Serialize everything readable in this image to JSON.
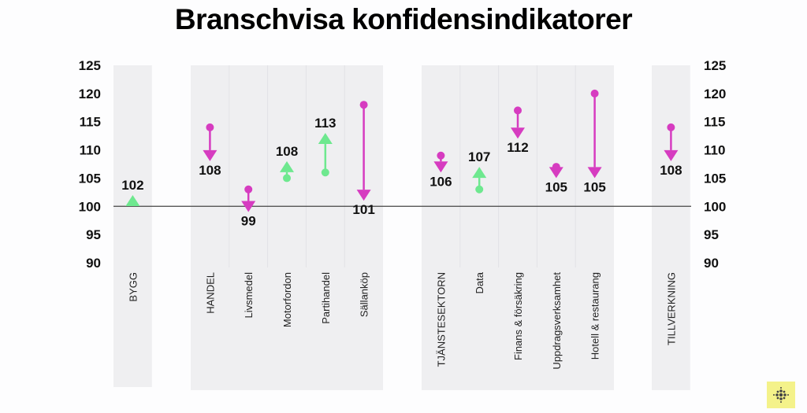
{
  "title": "Branschvisa konfidensindikatorer",
  "chart_data": {
    "type": "arrow-dot",
    "title": "Branschvisa konfidensindikatorer",
    "ylim": [
      90,
      125
    ],
    "yticks": [
      125,
      120,
      115,
      110,
      105,
      100,
      95,
      90
    ],
    "baseline": 100,
    "colors": {
      "up": "#6ee88f",
      "down": "#d63cc0",
      "panel": "#efeff1",
      "baseline": "#444444"
    },
    "groups": [
      {
        "name": "bygg",
        "categories": [
          {
            "label": "BYGG",
            "start": 101,
            "end": 102,
            "value_label": "102"
          }
        ]
      },
      {
        "name": "handel",
        "categories": [
          {
            "label": "HANDEL",
            "start": 114,
            "end": 108,
            "value_label": "108"
          },
          {
            "label": "Livsmedel",
            "start": 103,
            "end": 99,
            "value_label": "99"
          },
          {
            "label": "Motorfordon",
            "start": 105,
            "end": 108,
            "value_label": "108"
          },
          {
            "label": "Partihandel",
            "start": 106,
            "end": 113,
            "value_label": "113"
          },
          {
            "label": "Sällanköp",
            "start": 118,
            "end": 101,
            "value_label": "101"
          }
        ]
      },
      {
        "name": "tjanst",
        "categories": [
          {
            "label": "TJÄNSTESEKTORN",
            "start": 109,
            "end": 106,
            "value_label": "106"
          },
          {
            "label": "Data",
            "start": 103,
            "end": 107,
            "value_label": "107"
          },
          {
            "label": "Finans & försäkring",
            "start": 117,
            "end": 112,
            "value_label": "112"
          },
          {
            "label": "Uppdragsverksamhet",
            "start": 107,
            "end": 105,
            "value_label": "105"
          },
          {
            "label": "Hotell & restaurang",
            "start": 120,
            "end": 105,
            "value_label": "105"
          }
        ]
      },
      {
        "name": "tillverkning",
        "categories": [
          {
            "label": "TILLVERKNING",
            "start": 114,
            "end": 108,
            "value_label": "108"
          }
        ]
      }
    ]
  }
}
